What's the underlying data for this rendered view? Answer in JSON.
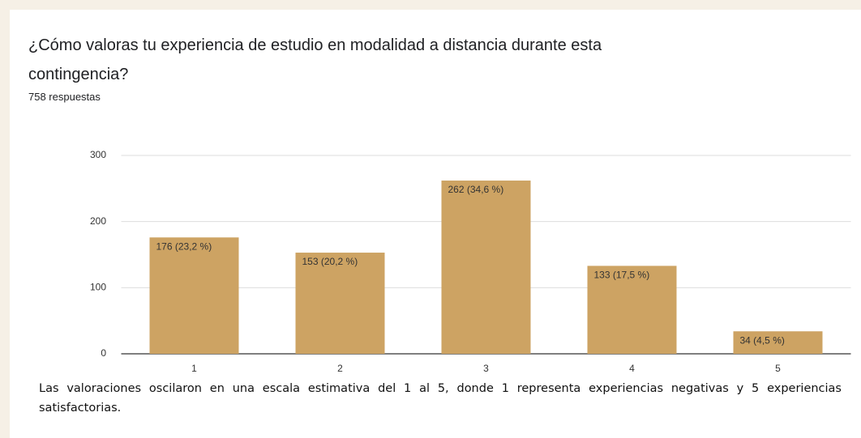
{
  "chart_data": {
    "type": "bar",
    "title": "¿Cómo valoras tu experiencia de estudio en modalidad a distancia durante esta contingencia?",
    "subtitle": "758 respuestas",
    "categories": [
      "1",
      "2",
      "3",
      "4",
      "5"
    ],
    "values": [
      176,
      153,
      262,
      133,
      34
    ],
    "value_labels": [
      "176 (23,2 %)",
      "153 (20,2 %)",
      "262 (34,6 %)",
      "133 (17,5 %)",
      "34 (4,5 %)"
    ],
    "color": "#cda363",
    "ylim": [
      0,
      300
    ],
    "yticks": [
      0,
      100,
      200,
      300
    ],
    "grid": true
  },
  "caption": "Las valoraciones oscilaron en una escala estimativa del 1 al 5, donde 1 representa experiencias negativas y 5 experiencias satisfactorias."
}
